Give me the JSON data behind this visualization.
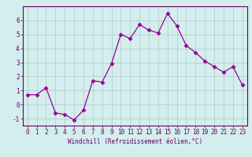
{
  "x": [
    0,
    1,
    2,
    3,
    4,
    5,
    6,
    7,
    8,
    9,
    10,
    11,
    12,
    13,
    14,
    15,
    16,
    17,
    18,
    19,
    20,
    21,
    22,
    23
  ],
  "y": [
    0.7,
    0.7,
    1.2,
    -0.6,
    -0.7,
    -1.1,
    -0.4,
    1.7,
    1.6,
    2.9,
    5.0,
    4.7,
    5.7,
    5.3,
    5.1,
    6.5,
    5.6,
    4.2,
    3.7,
    3.1,
    2.7,
    2.3,
    2.7,
    1.4
  ],
  "line_color": "#990099",
  "marker": "D",
  "marker_size": 2.5,
  "xlabel": "Windchill (Refroidissement éolien,°C)",
  "ylim": [
    -1.5,
    7.0
  ],
  "xlim": [
    -0.5,
    23.5
  ],
  "yticks": [
    -1,
    0,
    1,
    2,
    3,
    4,
    5,
    6
  ],
  "xticks": [
    0,
    1,
    2,
    3,
    4,
    5,
    6,
    7,
    8,
    9,
    10,
    11,
    12,
    13,
    14,
    15,
    16,
    17,
    18,
    19,
    20,
    21,
    22,
    23
  ],
  "bg_color": "#d4eeee",
  "grid_color": "#b0c8c8",
  "label_color": "#660066",
  "axis_color": "#660066",
  "tick_color": "#660066",
  "tick_fontsize": 5.5,
  "xlabel_fontsize": 5.5
}
